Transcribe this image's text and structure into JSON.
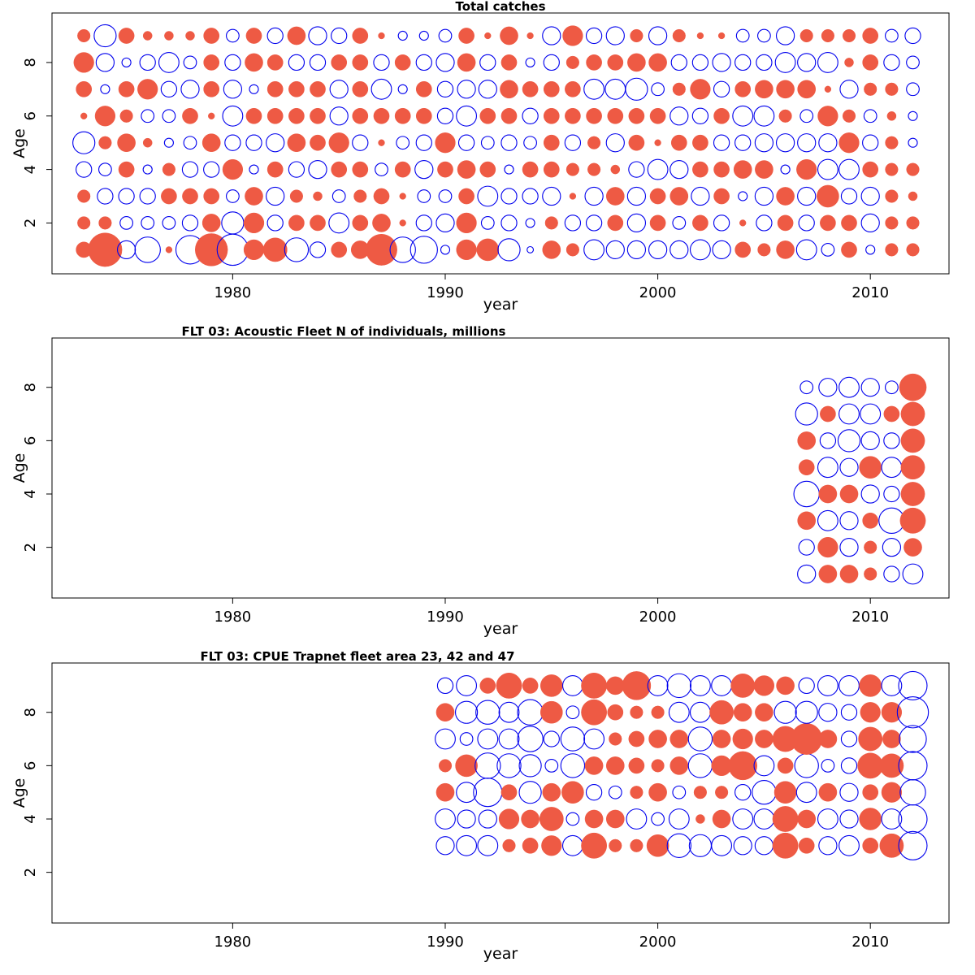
{
  "chart_data": [
    {
      "type": "scatter",
      "subtype": "bubble",
      "title": "Total catches",
      "xlabel": "year",
      "ylabel": "Age",
      "xlim": [
        1971.5,
        2013.7
      ],
      "ylim": [
        0.1,
        9.85
      ],
      "xticks": [
        1980,
        1990,
        2000,
        2010
      ],
      "yticks": [
        2,
        4,
        6,
        8
      ],
      "colors": {
        "positive": "#EE5A44",
        "negative": "#0000EE"
      },
      "years": [
        1973,
        1974,
        1975,
        1976,
        1977,
        1978,
        1979,
        1980,
        1981,
        1982,
        1983,
        1984,
        1985,
        1986,
        1987,
        1988,
        1989,
        1990,
        1991,
        1992,
        1993,
        1994,
        1995,
        1996,
        1997,
        1998,
        1999,
        2000,
        2001,
        2002,
        2003,
        2004,
        2005,
        2006,
        2007,
        2008,
        2009,
        2010,
        2011,
        2012
      ],
      "ages": [
        1,
        2,
        3,
        4,
        5,
        6,
        7,
        8,
        9
      ],
      "residuals": [
        [
          0.3,
          1.4,
          -0.4,
          -0.8,
          0.05,
          -1.0,
          1.3,
          -1.2,
          0.5,
          0.7,
          -0.7,
          -0.3,
          0.3,
          0.4,
          1.2,
          -0.8,
          -0.9,
          -0.1,
          0.5,
          0.6,
          -0.6,
          -0.05,
          0.4,
          0.2,
          -0.5,
          -0.4,
          -0.4,
          -0.4,
          -0.4,
          -0.5,
          -0.4,
          0.3,
          0.2,
          0.4,
          -0.5,
          -0.2,
          0.3,
          -0.1,
          0.2,
          0.2
        ],
        [
          0.2,
          0.2,
          -0.2,
          -0.2,
          -0.2,
          -0.3,
          0.4,
          -0.6,
          0.5,
          -0.3,
          0.3,
          0.3,
          -0.5,
          0.3,
          0.4,
          0.05,
          -0.3,
          -0.4,
          0.5,
          -0.2,
          -0.3,
          -0.1,
          0.2,
          -0.3,
          -0.3,
          0.3,
          -0.4,
          0.3,
          -0.2,
          0.3,
          -0.3,
          0.05,
          -0.3,
          0.3,
          -0.3,
          0.3,
          0.3,
          -0.4,
          0.2,
          0.2
        ],
        [
          0.2,
          -0.3,
          -0.3,
          -0.3,
          0.3,
          0.3,
          0.3,
          -0.2,
          0.4,
          -0.4,
          0.2,
          0.1,
          -0.2,
          0.2,
          0.3,
          0.05,
          -0.2,
          -0.2,
          0.3,
          -0.5,
          -0.3,
          -0.3,
          -0.4,
          0.05,
          -0.4,
          0.4,
          -0.4,
          0.3,
          0.4,
          -0.4,
          0.3,
          -0.1,
          -0.4,
          0.4,
          -0.4,
          0.6,
          -0.3,
          -0.4,
          0.2,
          0.1
        ],
        [
          -0.3,
          -0.2,
          0.3,
          -0.1,
          0.2,
          -0.3,
          -0.3,
          0.5,
          -0.1,
          0.3,
          -0.3,
          -0.4,
          0.3,
          0.3,
          -0.2,
          0.3,
          -0.4,
          0.3,
          0.4,
          0.3,
          -0.1,
          0.3,
          0.3,
          0.2,
          0.2,
          0.1,
          -0.3,
          -0.5,
          -0.4,
          0.3,
          0.3,
          0.4,
          0.4,
          -0.1,
          0.5,
          -0.5,
          -0.5,
          0.3,
          0.2,
          0.2
        ],
        [
          -0.6,
          0.2,
          0.4,
          0.1,
          -0.1,
          -0.2,
          0.4,
          -0.3,
          -0.3,
          -0.4,
          0.4,
          0.3,
          0.5,
          -0.3,
          0.05,
          -0.2,
          -0.3,
          0.5,
          -0.3,
          -0.2,
          -0.3,
          -0.2,
          0.3,
          -0.3,
          0.2,
          -0.4,
          0.3,
          0.05,
          0.3,
          0.3,
          -0.3,
          -0.3,
          -0.4,
          -0.4,
          -0.4,
          -0.4,
          0.5,
          -0.3,
          0.2,
          -0.1
        ],
        [
          0.05,
          0.5,
          0.2,
          -0.2,
          -0.2,
          0.3,
          0.05,
          -0.5,
          0.3,
          0.3,
          0.3,
          0.3,
          -0.4,
          0.3,
          0.3,
          0.3,
          0.3,
          -0.3,
          -0.5,
          0.3,
          0.3,
          -0.3,
          0.3,
          0.3,
          0.3,
          0.3,
          0.3,
          0.3,
          -0.4,
          -0.3,
          0.3,
          -0.5,
          -0.5,
          0.2,
          -0.2,
          0.5,
          0.2,
          -0.2,
          0.1,
          -0.1
        ],
        [
          0.3,
          -0.1,
          0.3,
          0.5,
          -0.3,
          -0.4,
          0.3,
          -0.4,
          -0.1,
          0.3,
          0.3,
          0.3,
          -0.4,
          0.3,
          -0.5,
          -0.1,
          0.3,
          -0.3,
          -0.4,
          -0.4,
          0.4,
          0.3,
          0.3,
          0.3,
          -0.5,
          -0.5,
          -0.6,
          -0.2,
          0.2,
          0.5,
          -0.3,
          0.3,
          0.4,
          0.4,
          0.4,
          0.05,
          -0.4,
          0.2,
          0.2,
          -0.2
        ],
        [
          0.5,
          -0.4,
          -0.1,
          -0.3,
          -0.5,
          -0.2,
          0.3,
          -0.3,
          0.4,
          0.3,
          -0.3,
          -0.3,
          0.3,
          0.3,
          -0.3,
          0.3,
          -0.3,
          -0.4,
          0.4,
          -0.3,
          0.3,
          -0.1,
          -0.3,
          0.2,
          0.3,
          0.3,
          0.4,
          0.4,
          -0.3,
          -0.3,
          -0.4,
          -0.3,
          -0.3,
          -0.5,
          -0.4,
          -0.5,
          0.1,
          0.3,
          -0.3,
          -0.2
        ],
        [
          0.2,
          -0.6,
          0.3,
          0.1,
          0.1,
          0.1,
          0.3,
          -0.2,
          0.3,
          -0.3,
          0.4,
          -0.4,
          -0.3,
          0.3,
          0.05,
          -0.1,
          -0.1,
          -0.2,
          0.3,
          0.05,
          0.4,
          0.05,
          -0.4,
          0.5,
          -0.3,
          -0.4,
          0.2,
          -0.4,
          0.2,
          0.05,
          0.05,
          -0.2,
          -0.2,
          -0.4,
          0.2,
          0.2,
          0.2,
          0.3,
          -0.2,
          -0.3
        ]
      ]
    },
    {
      "type": "scatter",
      "subtype": "bubble",
      "title": "FLT 03: Acoustic Fleet   N of individuals, millions",
      "xlabel": "year",
      "ylabel": "Age",
      "xlim": [
        1971.5,
        2013.7
      ],
      "ylim": [
        0.1,
        9.85
      ],
      "xticks": [
        1980,
        1990,
        2000,
        2010
      ],
      "yticks": [
        2,
        4,
        6,
        8
      ],
      "colors": {
        "positive": "#EE5A44",
        "negative": "#0000EE"
      },
      "years": [
        2007,
        2008,
        2009,
        2010,
        2011,
        2012
      ],
      "ages": [
        1,
        2,
        3,
        4,
        5,
        6,
        7,
        8
      ],
      "residuals": [
        [
          -0.4,
          0.4,
          0.4,
          0.2,
          -0.3,
          -0.5
        ],
        [
          -0.3,
          0.5,
          -0.4,
          0.2,
          -0.4,
          0.4
        ],
        [
          0.4,
          -0.5,
          -0.4,
          0.3,
          -0.8,
          0.8
        ],
        [
          -0.8,
          0.4,
          0.4,
          -0.4,
          -0.3,
          0.7
        ],
        [
          0.3,
          -0.5,
          -0.4,
          0.6,
          -0.5,
          0.7
        ],
        [
          0.4,
          -0.3,
          -0.6,
          -0.4,
          -0.3,
          0.7
        ],
        [
          -0.6,
          0.3,
          -0.5,
          -0.5,
          0.3,
          0.7
        ],
        [
          -0.2,
          -0.4,
          -0.5,
          -0.4,
          -0.2,
          0.9
        ]
      ]
    },
    {
      "type": "scatter",
      "subtype": "bubble",
      "title": "FLT 03: CPUE Trapnet fleet area 23, 42 and 47",
      "xlabel": "year",
      "ylabel": "Age",
      "xlim": [
        1971.5,
        2013.7
      ],
      "ylim": [
        0.1,
        9.85
      ],
      "xticks": [
        1980,
        1990,
        2000,
        2010
      ],
      "yticks": [
        2,
        4,
        6,
        8
      ],
      "colors": {
        "positive": "#EE5A44",
        "negative": "#0000EE"
      },
      "years": [
        1990,
        1991,
        1992,
        1993,
        1994,
        1995,
        1996,
        1997,
        1998,
        1999,
        2000,
        2001,
        2002,
        2003,
        2004,
        2005,
        2006,
        2007,
        2008,
        2009,
        2010,
        2011,
        2012
      ],
      "ages": [
        3,
        4,
        5,
        6,
        7,
        8,
        9
      ],
      "residuals": [
        [
          -0.4,
          -0.5,
          -0.5,
          0.2,
          0.3,
          0.5,
          -0.5,
          0.8,
          0.2,
          0.2,
          0.6,
          -0.7,
          -0.6,
          -0.5,
          -0.4,
          -0.4,
          0.8,
          0.3,
          -0.4,
          -0.5,
          0.3,
          0.7,
          -1.0
        ],
        [
          -0.5,
          -0.4,
          -0.4,
          0.5,
          0.4,
          0.7,
          -0.2,
          0.4,
          0.4,
          -0.5,
          -0.2,
          -0.5,
          0.1,
          0.4,
          -0.5,
          -0.5,
          0.8,
          0.4,
          -0.5,
          -0.4,
          0.6,
          -0.5,
          -1.0
        ],
        [
          0.4,
          -0.5,
          -1.0,
          0.3,
          -0.6,
          0.4,
          0.6,
          -0.3,
          -0.2,
          0.2,
          0.4,
          -0.2,
          0.2,
          0.2,
          -0.3,
          -0.7,
          0.6,
          -0.5,
          0.4,
          -0.4,
          0.3,
          0.5,
          -0.8
        ],
        [
          0.2,
          0.6,
          -0.8,
          -0.7,
          -0.6,
          -0.2,
          -0.7,
          0.4,
          0.4,
          0.3,
          0.2,
          0.4,
          -0.7,
          0.5,
          1.0,
          -0.5,
          0.3,
          -0.7,
          -0.2,
          -0.3,
          0.8,
          0.7,
          -1.0
        ],
        [
          -0.5,
          -0.2,
          -0.5,
          -0.5,
          -0.8,
          -0.3,
          -0.7,
          -0.5,
          0.2,
          0.3,
          0.4,
          0.4,
          -0.7,
          0.4,
          0.5,
          0.4,
          0.8,
          1.2,
          0.4,
          -0.3,
          0.7,
          0.4,
          -0.9
        ],
        [
          0.4,
          -0.6,
          -0.7,
          -0.5,
          -0.8,
          0.6,
          -0.2,
          0.8,
          0.3,
          0.2,
          0.2,
          -0.5,
          -0.5,
          0.7,
          0.4,
          0.4,
          -0.6,
          -0.6,
          -0.4,
          -0.3,
          0.5,
          0.5,
          -1.2
        ],
        [
          -0.3,
          -0.5,
          0.3,
          0.8,
          0.3,
          0.6,
          -0.5,
          0.8,
          0.4,
          1.0,
          -0.5,
          -0.7,
          -0.5,
          -0.5,
          0.7,
          0.5,
          0.4,
          -0.3,
          -0.5,
          -0.5,
          0.6,
          -0.5,
          -1.0
        ]
      ]
    }
  ]
}
